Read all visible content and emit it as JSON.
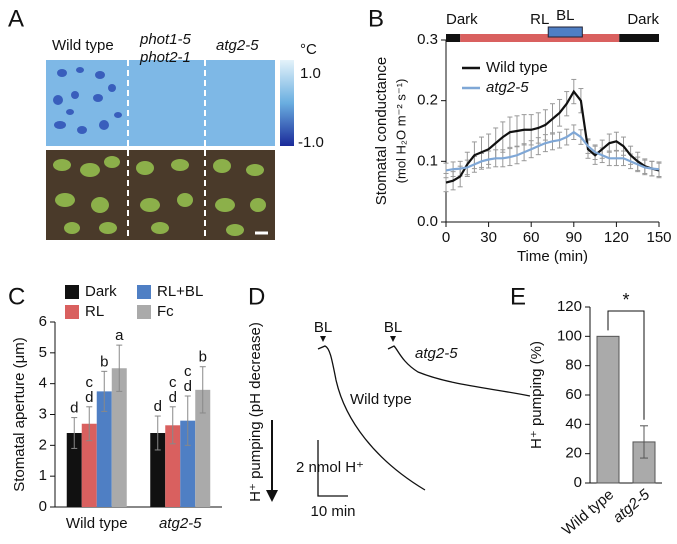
{
  "panel_labels": [
    "A",
    "B",
    "C",
    "D",
    "E"
  ],
  "panels": {
    "A": {
      "columns": [
        "Wild type",
        "phot1-5",
        "phot2-1",
        "atg2-5"
      ],
      "colorbar_unit": "°C",
      "colorbar_top": "1.0",
      "colorbar_bottom": "-1.0"
    },
    "D": {
      "ylabel": "H⁺ pumping (pH decrease)",
      "stimulus": [
        "BL",
        "BL"
      ],
      "trace_labels": [
        "Wild type",
        "atg2-5"
      ],
      "scale_y": "2 nmol H⁺",
      "scale_x": "10 min"
    }
  },
  "chart_data": [
    {
      "type": "line",
      "ylabel": "Stomatal conductance",
      "ylabel_unit": "(mol H₂O m⁻² s⁻¹)",
      "xlabel": "Time (min)",
      "periods": [
        {
          "label": "Dark",
          "from": 0,
          "to": 10,
          "color": "#111111",
          "raised": false
        },
        {
          "label": "RL",
          "from": 10,
          "to": 122,
          "color": "#d9605f",
          "raised": false
        },
        {
          "label": "BL",
          "from": 72,
          "to": 96,
          "color": "#4f7fc4",
          "raised": true
        },
        {
          "label": "Dark",
          "from": 122,
          "to": 150,
          "color": "#111111",
          "raised": false
        }
      ],
      "x": [
        0,
        5,
        10,
        15,
        20,
        25,
        30,
        35,
        40,
        45,
        50,
        55,
        60,
        65,
        70,
        75,
        80,
        85,
        90,
        95,
        100,
        105,
        110,
        115,
        120,
        125,
        130,
        135,
        140,
        145,
        150
      ],
      "series": [
        {
          "name": "Wild type",
          "color": "#111111",
          "values": [
            0.065,
            0.068,
            0.075,
            0.095,
            0.11,
            0.115,
            0.12,
            0.13,
            0.14,
            0.148,
            0.15,
            0.152,
            0.152,
            0.155,
            0.16,
            0.17,
            0.18,
            0.195,
            0.215,
            0.2,
            0.12,
            0.11,
            0.12,
            0.13,
            0.133,
            0.125,
            0.11,
            0.1,
            0.092,
            0.088,
            0.085
          ],
          "errors": [
            0.015,
            0.015,
            0.017,
            0.02,
            0.022,
            0.025,
            0.025,
            0.025,
            0.025,
            0.025,
            0.025,
            0.025,
            0.025,
            0.025,
            0.025,
            0.025,
            0.022,
            0.02,
            0.02,
            0.02,
            0.015,
            0.015,
            0.015,
            0.015,
            0.015,
            0.015,
            0.015,
            0.015,
            0.012,
            0.012,
            0.012
          ]
        },
        {
          "name": "atg2-5",
          "color": "#7fa7d6",
          "values": [
            0.085,
            0.087,
            0.088,
            0.09,
            0.095,
            0.1,
            0.103,
            0.105,
            0.105,
            0.107,
            0.11,
            0.115,
            0.12,
            0.125,
            0.13,
            0.133,
            0.135,
            0.14,
            0.148,
            0.14,
            0.125,
            0.115,
            0.11,
            0.105,
            0.105,
            0.105,
            0.1,
            0.095,
            0.09,
            0.088,
            0.087
          ],
          "errors": [
            0.012,
            0.012,
            0.012,
            0.012,
            0.013,
            0.013,
            0.014,
            0.014,
            0.014,
            0.014,
            0.014,
            0.014,
            0.014,
            0.014,
            0.014,
            0.014,
            0.013,
            0.013,
            0.012,
            0.012,
            0.012,
            0.012,
            0.012,
            0.012,
            0.012,
            0.012,
            0.012,
            0.012,
            0.012,
            0.012,
            0.012
          ]
        }
      ],
      "xlim": [
        0,
        150
      ],
      "xticks": [
        0,
        30,
        60,
        90,
        120,
        150
      ],
      "ylim": [
        0,
        0.3
      ],
      "yticks": [
        {
          "value": 0,
          "label": "0.0"
        },
        0.1,
        0.2,
        0.3
      ]
    },
    {
      "type": "bar",
      "ylabel": "Stomatal aperture (μm)",
      "categories": [
        "Wild type",
        "atg2-5"
      ],
      "series": [
        {
          "name": "Dark",
          "color": "#111111",
          "values": [
            2.4,
            2.4
          ],
          "errors": [
            0.5,
            0.55
          ],
          "letters": [
            [
              "d"
            ],
            [
              "d"
            ]
          ]
        },
        {
          "name": "RL",
          "color": "#d9605f",
          "values": [
            2.7,
            2.65
          ],
          "errors": [
            0.55,
            0.6
          ],
          "letters": [
            [
              "d",
              "c"
            ],
            [
              "d",
              "c"
            ]
          ]
        },
        {
          "name": "RL+BL",
          "color": "#4f7fc4",
          "values": [
            3.75,
            2.8
          ],
          "errors": [
            0.65,
            0.8
          ],
          "letters": [
            [
              "b"
            ],
            [
              "d",
              "c"
            ]
          ]
        },
        {
          "name": "Fc",
          "color": "#aaaaaa",
          "values": [
            4.5,
            3.8
          ],
          "errors": [
            0.75,
            0.75
          ],
          "letters": [
            [
              "a"
            ],
            [
              "b"
            ]
          ]
        }
      ],
      "ylim": [
        0,
        6
      ],
      "yticks": [
        0,
        1,
        2,
        3,
        4,
        5,
        6
      ]
    },
    {
      "type": "bar",
      "ylabel": "H⁺ pumping (%)",
      "categories": [
        "Wild type",
        "atg2-5"
      ],
      "color": "#aaaaaa",
      "values": [
        100,
        28
      ],
      "errors": [
        null,
        11
      ],
      "significance": "*",
      "ylim": [
        0,
        120
      ],
      "yticks": [
        0,
        20,
        40,
        60,
        80,
        100,
        120
      ]
    }
  ]
}
